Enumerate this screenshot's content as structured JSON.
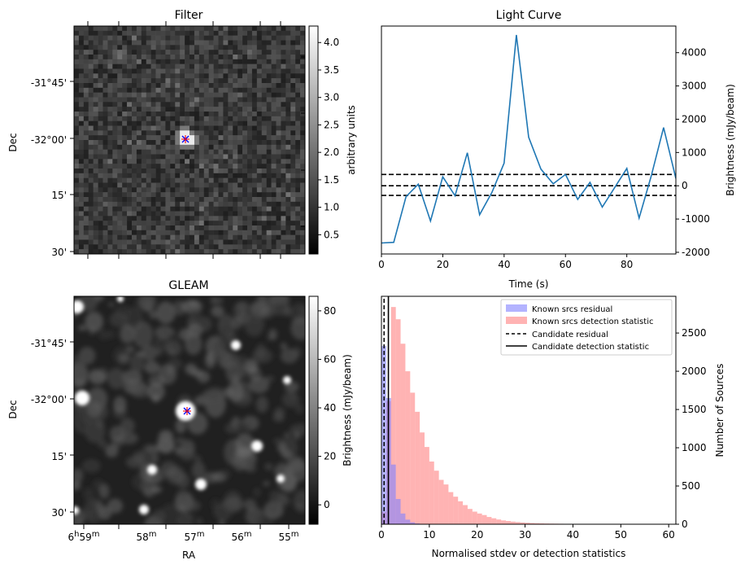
{
  "chart_data": [
    {
      "type": "heatmap",
      "title": "Filter",
      "xlabel": "",
      "ylabel": "Dec",
      "ytick_labels": [
        "-31°45'",
        "-32°00'",
        "15'",
        "30'"
      ],
      "colorbar": {
        "label": "arbitrary units",
        "range": [
          0.15,
          4.3
        ],
        "ticks": [
          0.5,
          1.0,
          1.5,
          2.0,
          2.5,
          3.0,
          3.5,
          4.0
        ],
        "tick_labels": [
          "0.5",
          "1.0",
          "1.5",
          "2.0",
          "2.5",
          "3.0",
          "3.5",
          "4.0"
        ],
        "colormap": "gray"
      },
      "candidate_markers": [
        {
          "symbol": "x",
          "color": "#0000ff"
        },
        {
          "symbol": "+",
          "color": "#ff0000"
        }
      ]
    },
    {
      "type": "line",
      "title": "Light Curve",
      "xlabel": "Time (s)",
      "ylabel": "Brightness (mJy/beam)",
      "xlim": [
        0,
        96
      ],
      "ylim": [
        -2050,
        4800
      ],
      "xticks": [
        0,
        20,
        40,
        60,
        80
      ],
      "yticks": [
        -2000,
        -1000,
        0,
        1000,
        2000,
        3000,
        4000
      ],
      "x": [
        0,
        4,
        8,
        12,
        16,
        20,
        24,
        28,
        32,
        36,
        40,
        44,
        48,
        52,
        56,
        60,
        64,
        68,
        72,
        76,
        80,
        84,
        88,
        92,
        96
      ],
      "series": [
        {
          "values": [
            -1720,
            -1700,
            -330,
            50,
            -1060,
            270,
            -300,
            990,
            -870,
            -200,
            680,
            4530,
            1460,
            500,
            60,
            340,
            -410,
            100,
            -640,
            -60,
            520,
            -970,
            300,
            1750,
            220
          ],
          "color": "#1f77b4"
        }
      ],
      "hlines": [
        {
          "y": 340,
          "style": "dashed"
        },
        {
          "y": 0,
          "style": "dashed"
        },
        {
          "y": -290,
          "style": "dashed"
        }
      ]
    },
    {
      "type": "heatmap",
      "title": "GLEAM",
      "xlabel": "RA",
      "ylabel": "Dec",
      "xtick_labels": [
        {
          "main": "6",
          "h": "h",
          "m": "59",
          "u": "m"
        },
        {
          "main": "58",
          "h": "",
          "m": "",
          "u": "m"
        },
        {
          "main": "57",
          "h": "",
          "m": "",
          "u": "m"
        },
        {
          "main": "56",
          "h": "",
          "m": "",
          "u": "m"
        },
        {
          "main": "55",
          "h": "",
          "m": "",
          "u": "m"
        }
      ],
      "ytick_labels": [
        "-31°45'",
        "-32°00'",
        "15'",
        "30'"
      ],
      "colorbar": {
        "label": "Brightness (mJy/beam)",
        "range": [
          -8,
          86
        ],
        "ticks": [
          0,
          20,
          40,
          60,
          80
        ],
        "tick_labels": [
          "0",
          "20",
          "40",
          "60",
          "80"
        ],
        "colormap": "gray"
      },
      "candidate_markers": [
        {
          "symbol": "x",
          "color": "#0000ff"
        },
        {
          "symbol": "+",
          "color": "#ff0000"
        }
      ]
    },
    {
      "type": "bar",
      "title": "",
      "xlabel": "Normalised stdev or detection statistics",
      "ylabel": "Number of Sources",
      "xlim": [
        0,
        61.5
      ],
      "ylim": [
        0,
        2980
      ],
      "xticks": [
        0,
        10,
        20,
        30,
        40,
        50,
        60
      ],
      "yticks": [
        0,
        500,
        1000,
        1500,
        2000,
        2500
      ],
      "bin_width": 1.0,
      "series": [
        {
          "name": "Known srcs residual",
          "color": "#8080ff",
          "alpha": 0.6,
          "bin_edges_start": 0,
          "values": [
            2330,
            1650,
            780,
            330,
            140,
            60,
            25,
            10,
            5,
            2
          ]
        },
        {
          "name": "Known srcs detection statistic",
          "color": "#ff8080",
          "alpha": 0.6,
          "bin_edges_start": 0,
          "values": [
            160,
            1610,
            2840,
            2680,
            2360,
            2000,
            1720,
            1470,
            1200,
            1010,
            820,
            700,
            580,
            520,
            420,
            360,
            300,
            250,
            200,
            165,
            140,
            120,
            95,
            78,
            62,
            50,
            42,
            34,
            28,
            23,
            19,
            16,
            13,
            11,
            9,
            8,
            7,
            6,
            5,
            4,
            4,
            3,
            3,
            2,
            2,
            2,
            2,
            1,
            1,
            1,
            1,
            1,
            1,
            1,
            1,
            1,
            1,
            1,
            1,
            1
          ]
        }
      ],
      "vlines": [
        {
          "name": "Candidate residual",
          "x": 0.55,
          "style": "dashed"
        },
        {
          "name": "Candidate detection statistic",
          "x": 1.45,
          "style": "solid"
        }
      ],
      "legend": "top-right"
    }
  ]
}
